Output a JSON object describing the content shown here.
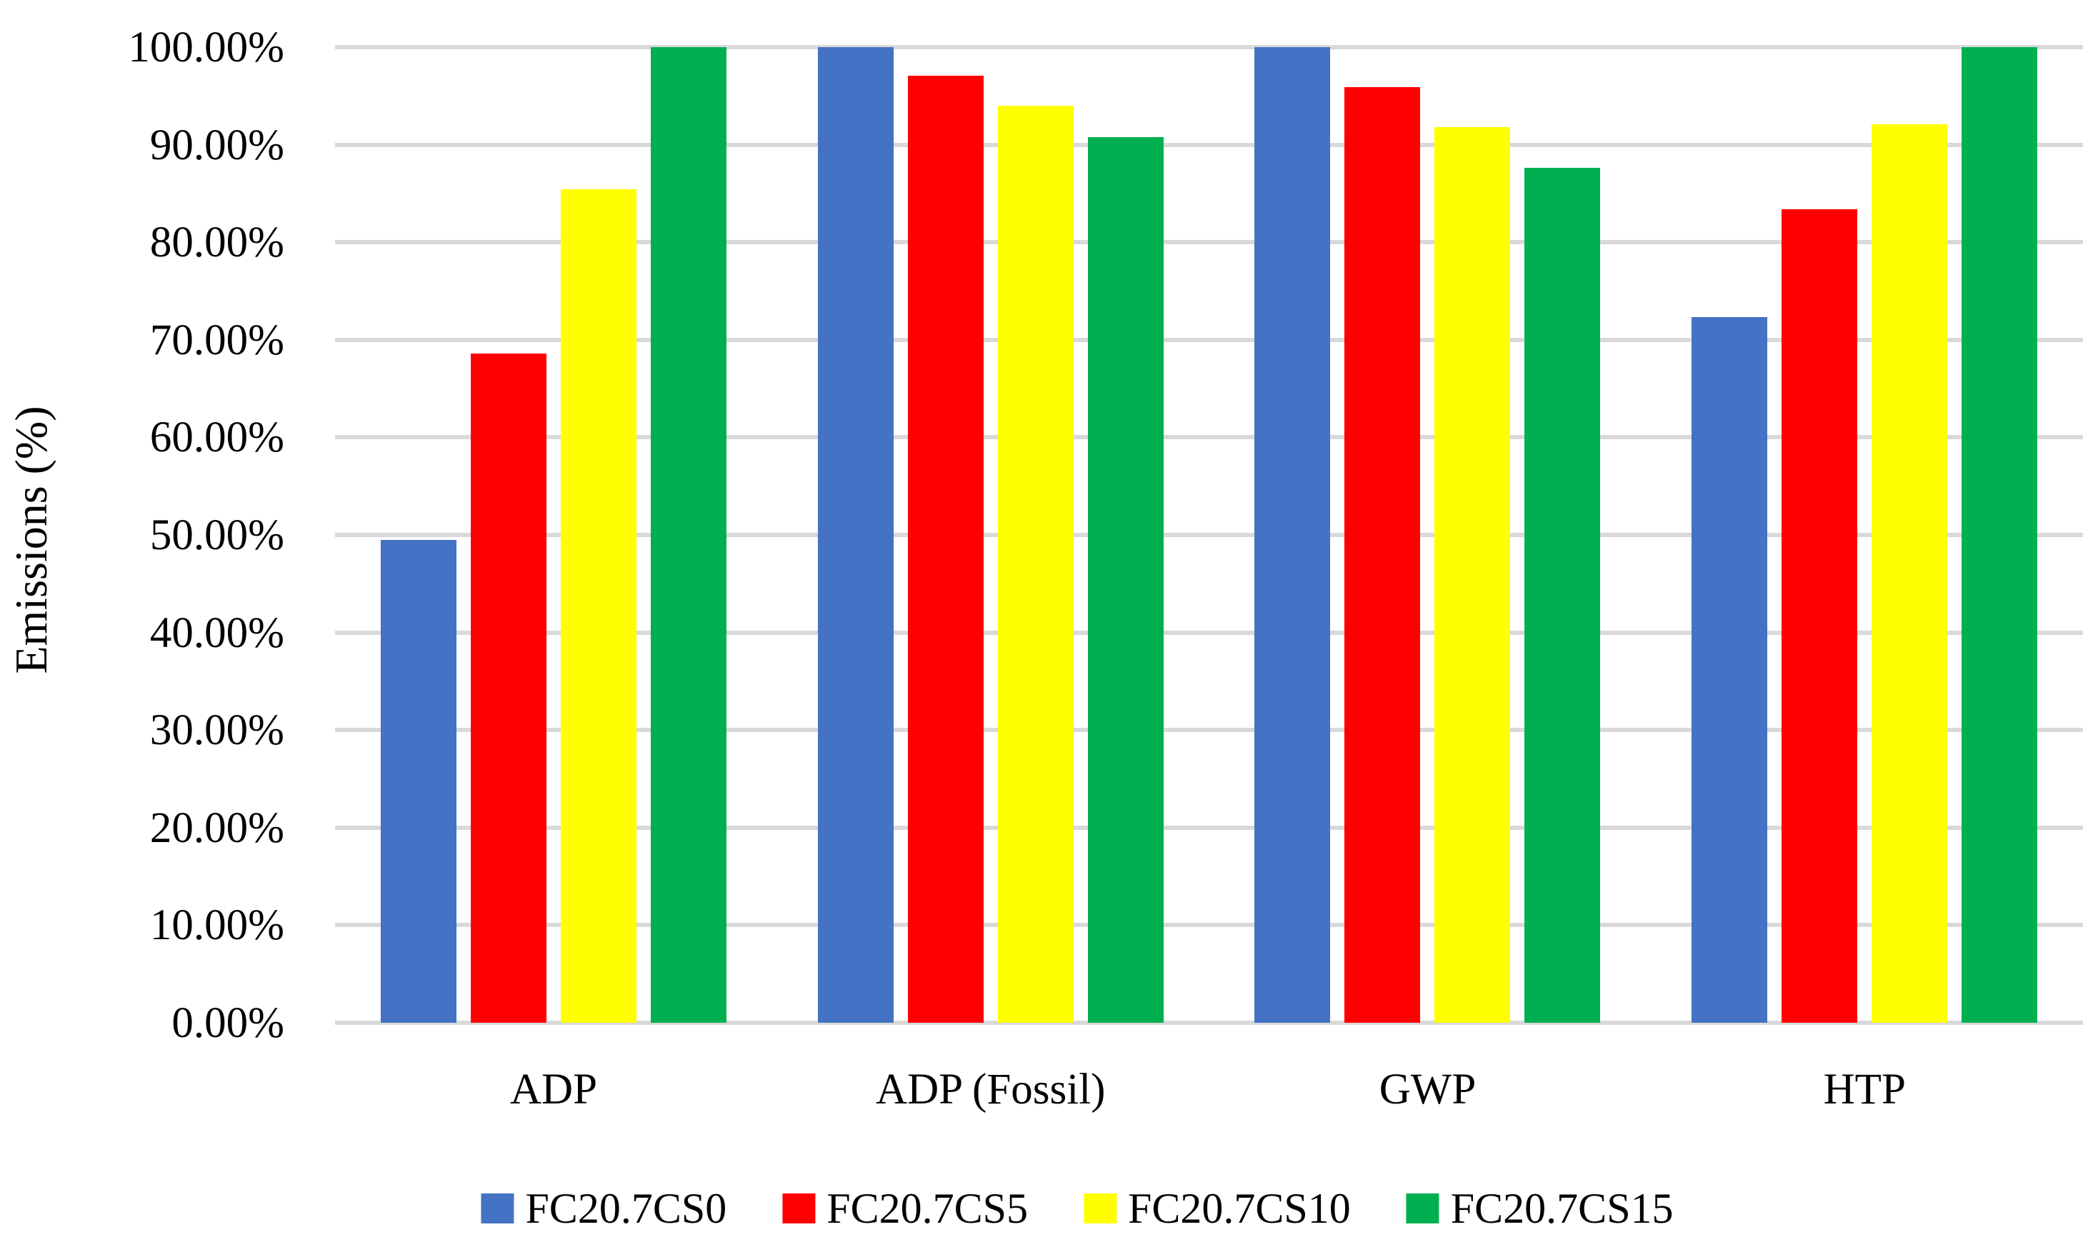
{
  "chart_data": {
    "type": "bar",
    "title": "",
    "xlabel": "",
    "ylabel": "Emissions (%)",
    "ylim": [
      0,
      100
    ],
    "ytick_step": 10,
    "grid": true,
    "legend_position": "bottom",
    "background_color": "#FFFFFF",
    "gridline_color": "#D9D9D9",
    "text_color": "#000000",
    "categories": [
      "ADP",
      "ADP (Fossil)",
      "GWP",
      "HTP"
    ],
    "series": [
      {
        "name": "FC20.7CS0",
        "color": "#4472C4",
        "values": [
          49.5,
          100.0,
          100.0,
          72.3
        ]
      },
      {
        "name": "FC20.7CS5",
        "color": "#FF0000",
        "values": [
          68.6,
          97.1,
          95.9,
          83.4
        ]
      },
      {
        "name": "FC20.7CS10",
        "color": "#FFFF00",
        "values": [
          85.4,
          94.0,
          91.8,
          92.1
        ]
      },
      {
        "name": "FC20.7CS15",
        "color": "#00B050",
        "values": [
          100.0,
          90.8,
          87.6,
          100.0
        ]
      }
    ],
    "ytick_labels": [
      "0.00%",
      "10.00%",
      "20.00%",
      "30.00%",
      "40.00%",
      "50.00%",
      "60.00%",
      "70.00%",
      "80.00%",
      "90.00%",
      "100.00%"
    ]
  }
}
